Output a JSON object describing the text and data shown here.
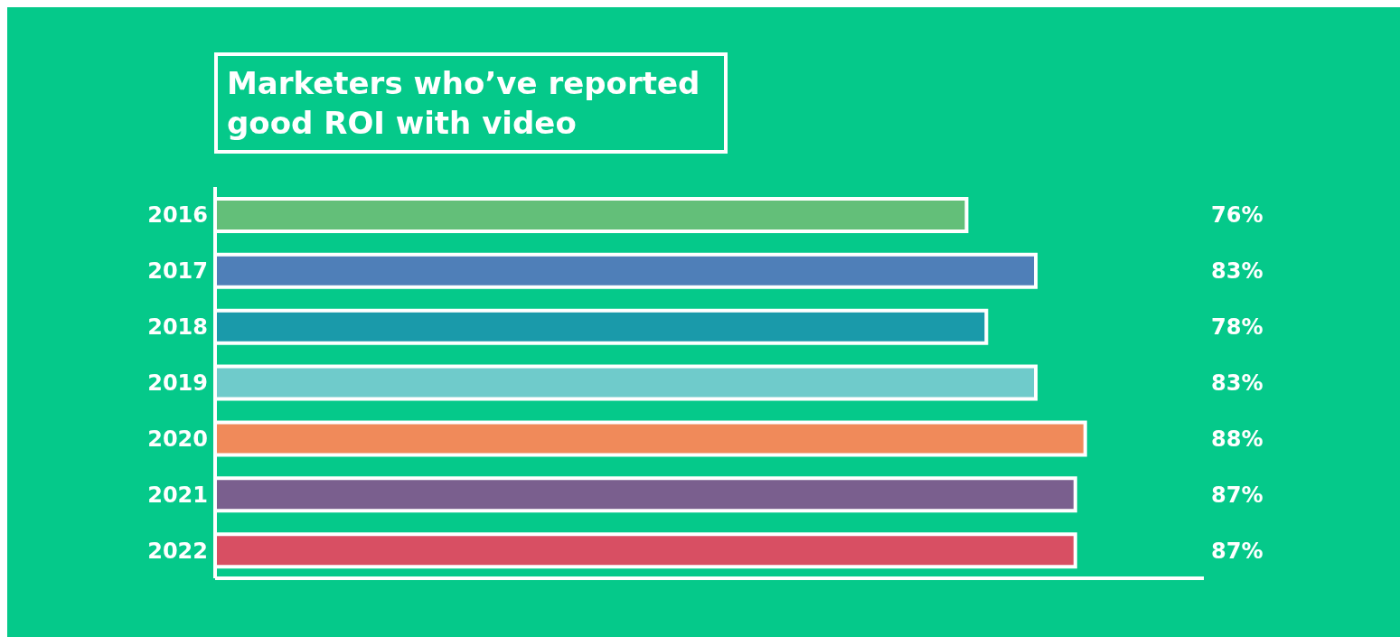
{
  "chart_data": {
    "type": "bar",
    "orientation": "horizontal",
    "title": "Marketers who’ve reported good ROI with video",
    "categories": [
      "2016",
      "2017",
      "2018",
      "2019",
      "2020",
      "2021",
      "2022"
    ],
    "values": [
      76,
      83,
      78,
      83,
      88,
      87,
      87
    ],
    "value_labels": [
      "76%",
      "83%",
      "78%",
      "83%",
      "88%",
      "87%",
      "87%"
    ],
    "colors": [
      "#63bf79",
      "#4f7fb8",
      "#1a9aaa",
      "#6fcbcb",
      "#f08a5a",
      "#7a5f8e",
      "#d84f63"
    ],
    "xlim": [
      0,
      100
    ],
    "tick_labels": "y",
    "grid": false,
    "legend": false
  }
}
